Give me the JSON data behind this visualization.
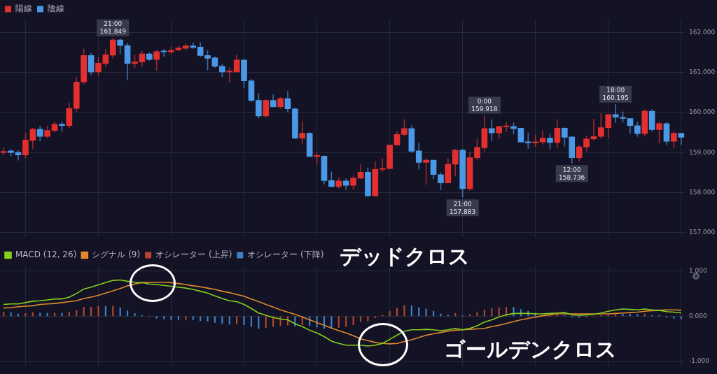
{
  "chart_data": [
    {
      "type": "candlestick",
      "categories": [
        null,
        null,
        null,
        null,
        null,
        null,
        null,
        null,
        null,
        null,
        null,
        null,
        null,
        null,
        null,
        null,
        null,
        null,
        null,
        null,
        null,
        null,
        null,
        null,
        null,
        null,
        null,
        null,
        null,
        null,
        null,
        null,
        null,
        null,
        null,
        null,
        null,
        null,
        null,
        null,
        null,
        null,
        null,
        null,
        null,
        null,
        null,
        null,
        null,
        null,
        null,
        null,
        null,
        null,
        null,
        null,
        null,
        null,
        null,
        null,
        null,
        null,
        null,
        null,
        null,
        null,
        null,
        null,
        null,
        null,
        null,
        null,
        null,
        null,
        null,
        null,
        null,
        null,
        null,
        null,
        null,
        null,
        null,
        null,
        null,
        null,
        null,
        null,
        null,
        null,
        null,
        null,
        null,
        null
      ],
      "series": [
        {
          "name": "陽線",
          "color": "#e3302f",
          "ohlc": [
            [
              159.0,
              159.12,
              158.94,
              159.02
            ],
            null,
            null,
            [
              158.94,
              159.49,
              158.87,
              159.31
            ],
            [
              159.3,
              159.61,
              159.1,
              159.58
            ],
            null,
            [
              159.4,
              159.67,
              159.36,
              159.55
            ],
            [
              159.55,
              159.76,
              159.51,
              159.71
            ],
            null,
            [
              159.67,
              160.23,
              159.62,
              160.1
            ],
            [
              160.1,
              160.88,
              160.02,
              160.76
            ],
            [
              160.76,
              161.59,
              160.71,
              161.42
            ],
            null,
            [
              161.01,
              161.38,
              160.93,
              161.23
            ],
            [
              161.22,
              161.57,
              161.14,
              161.44
            ],
            [
              161.43,
              161.849,
              161.36,
              161.81
            ],
            null,
            null,
            [
              161.22,
              161.43,
              161.12,
              161.26
            ],
            [
              161.26,
              161.53,
              161.16,
              161.46
            ],
            null,
            [
              161.32,
              161.55,
              161.05,
              161.52
            ],
            null,
            [
              161.51,
              161.64,
              161.46,
              161.55
            ],
            [
              161.56,
              161.66,
              161.54,
              161.61
            ],
            [
              161.6,
              161.71,
              161.56,
              161.66
            ],
            null,
            null,
            null,
            null,
            null,
            [
              161.01,
              161.12,
              160.75,
              161.02
            ],
            [
              161.01,
              161.44,
              161.0,
              161.31
            ],
            null,
            null,
            null,
            [
              159.91,
              160.32,
              159.88,
              160.3
            ],
            null,
            [
              160.14,
              160.37,
              160.11,
              160.35
            ],
            null,
            null,
            [
              159.36,
              159.77,
              159.21,
              159.48
            ],
            null,
            [
              158.9,
              158.99,
              158.7,
              158.91
            ],
            null,
            null,
            [
              158.15,
              158.38,
              158.11,
              158.29
            ],
            null,
            [
              158.18,
              158.42,
              158.07,
              158.36
            ],
            [
              158.36,
              158.7,
              158.35,
              158.51
            ],
            null,
            [
              157.92,
              158.77,
              157.91,
              158.58
            ],
            [
              158.58,
              158.85,
              158.52,
              158.6
            ],
            [
              158.6,
              159.19,
              158.6,
              159.19
            ],
            [
              159.19,
              159.53,
              159.18,
              159.45
            ],
            [
              159.45,
              159.82,
              159.41,
              159.6
            ],
            null,
            null,
            [
              158.75,
              158.85,
              158.2,
              158.81
            ],
            null,
            null,
            [
              158.24,
              158.85,
              158.24,
              158.71
            ],
            [
              158.71,
              159.08,
              158.41,
              159.06
            ],
            null,
            [
              158.1,
              159.01,
              158.05,
              158.87
            ],
            [
              158.87,
              159.33,
              158.81,
              159.13
            ],
            [
              159.12,
              159.918,
              159.03,
              159.6
            ],
            null,
            [
              159.49,
              159.65,
              159.35,
              159.65
            ],
            [
              159.64,
              159.76,
              159.52,
              159.65
            ],
            null,
            null,
            null,
            [
              159.24,
              159.45,
              159.15,
              159.26
            ],
            [
              159.26,
              159.55,
              159.21,
              159.36
            ],
            null,
            [
              159.25,
              159.82,
              159.12,
              159.61
            ],
            null,
            null,
            [
              158.87,
              159.18,
              158.78,
              159.14
            ],
            [
              159.14,
              159.42,
              159.03,
              159.34
            ],
            [
              159.34,
              159.83,
              159.3,
              159.4
            ],
            [
              159.4,
              159.98,
              159.35,
              159.62
            ],
            [
              159.62,
              159.95,
              159.36,
              159.95
            ],
            null,
            null,
            null,
            null,
            [
              159.47,
              160.07,
              159.42,
              160.03
            ],
            null,
            [
              159.57,
              159.77,
              159.24,
              159.72
            ],
            null,
            [
              159.28,
              159.53,
              159.11,
              159.48
            ],
            null
          ]
        },
        {
          "name": "陰線",
          "color": "#4a98e6",
          "ohlc": [
            null,
            [
              159.04,
              159.07,
              158.91,
              159.0
            ],
            [
              159.0,
              159.05,
              158.81,
              158.94
            ],
            null,
            null,
            [
              159.58,
              159.66,
              159.29,
              159.4
            ],
            null,
            null,
            [
              159.71,
              159.77,
              159.53,
              159.67
            ],
            null,
            null,
            null,
            [
              161.42,
              161.48,
              160.94,
              161.01
            ],
            null,
            null,
            null,
            [
              161.81,
              161.84,
              161.46,
              161.67
            ],
            [
              161.67,
              161.73,
              160.81,
              161.22
            ],
            null,
            null,
            [
              161.46,
              161.49,
              161.3,
              161.32
            ],
            null,
            [
              161.52,
              161.57,
              161.4,
              161.51
            ],
            null,
            null,
            null,
            [
              161.66,
              161.74,
              161.59,
              161.62
            ],
            [
              161.63,
              161.74,
              161.39,
              161.42
            ],
            [
              161.42,
              161.55,
              161.06,
              161.35
            ],
            [
              161.36,
              161.39,
              161.12,
              161.15
            ],
            [
              161.15,
              161.2,
              160.89,
              161.01
            ],
            null,
            null,
            [
              161.31,
              161.31,
              160.62,
              160.79
            ],
            [
              160.79,
              160.83,
              160.27,
              160.3
            ],
            [
              160.3,
              160.48,
              159.86,
              159.91
            ],
            null,
            [
              160.3,
              160.44,
              160.14,
              160.14
            ],
            null,
            [
              160.35,
              160.53,
              160.02,
              160.09
            ],
            [
              160.09,
              160.12,
              159.34,
              159.36
            ],
            null,
            [
              159.48,
              159.5,
              158.9,
              158.9
            ],
            null,
            [
              158.91,
              158.92,
              158.21,
              158.3
            ],
            [
              158.3,
              158.52,
              158.14,
              158.15
            ],
            null,
            [
              158.29,
              158.35,
              158.07,
              158.18
            ],
            null,
            null,
            [
              158.51,
              158.62,
              157.91,
              157.92
            ],
            null,
            null,
            null,
            null,
            null,
            [
              159.6,
              159.67,
              159.0,
              159.03
            ],
            [
              159.04,
              159.23,
              158.58,
              158.75
            ],
            null,
            [
              158.81,
              158.81,
              158.34,
              158.45
            ],
            [
              158.45,
              158.5,
              158.07,
              158.24
            ],
            null,
            null,
            [
              159.06,
              159.08,
              157.883,
              158.1
            ],
            null,
            null,
            null,
            [
              159.6,
              159.82,
              159.29,
              159.49
            ],
            null,
            null,
            [
              159.65,
              159.74,
              159.46,
              159.6
            ],
            [
              159.61,
              159.61,
              159.26,
              159.26
            ],
            [
              159.27,
              159.49,
              159.1,
              159.24
            ],
            null,
            null,
            [
              159.36,
              159.46,
              159.09,
              159.25
            ],
            null,
            [
              159.61,
              159.62,
              159.16,
              159.38
            ],
            [
              159.39,
              159.39,
              158.736,
              158.87
            ],
            null,
            null,
            null,
            null,
            null,
            [
              159.95,
              160.195,
              159.74,
              159.88
            ],
            [
              159.88,
              160.02,
              159.76,
              159.85
            ],
            [
              159.85,
              159.85,
              159.48,
              159.67
            ],
            [
              159.67,
              159.76,
              159.4,
              159.47
            ],
            null,
            [
              160.03,
              160.07,
              159.53,
              159.57
            ],
            null,
            [
              159.72,
              159.75,
              159.2,
              159.28
            ],
            null,
            [
              159.48,
              159.48,
              159.2,
              159.38
            ]
          ]
        }
      ],
      "ylim": [
        156.9,
        162.3
      ],
      "yticks": [
        {
          "value": 157,
          "label": "157.000"
        },
        {
          "value": 158,
          "label": "158.000"
        },
        {
          "value": 159,
          "label": "159.000"
        },
        {
          "value": 160,
          "label": "160.000"
        },
        {
          "value": 161,
          "label": "161.000"
        },
        {
          "value": 162,
          "label": "162.000"
        }
      ],
      "grid": true,
      "legend": "top left",
      "tick_labels": "y",
      "annotations": [
        {
          "text": "21:00\n161.849",
          "y": 161.849
        },
        {
          "text": "21:00\n157.883",
          "y": 157.883
        },
        {
          "text": "0:00\n159.918",
          "y": 159.918
        },
        {
          "text": "12:00\n158.736",
          "y": 158.736
        },
        {
          "text": "18:00\n160.195",
          "y": 160.195
        }
      ]
    },
    {
      "type": "line",
      "categories": [
        null,
        null,
        null,
        null,
        null,
        null,
        null,
        null,
        null,
        null,
        null,
        null,
        null,
        null,
        null,
        null,
        null,
        null,
        null,
        null,
        null,
        null,
        null,
        null,
        null,
        null,
        null,
        null,
        null,
        null,
        null,
        null,
        null,
        null,
        null,
        null,
        null,
        null,
        null,
        null,
        null,
        null,
        null,
        null,
        null,
        null,
        null,
        null,
        null,
        null,
        null,
        null,
        null,
        null,
        null,
        null,
        null,
        null,
        null,
        null,
        null,
        null,
        null,
        null,
        null,
        null,
        null,
        null,
        null,
        null,
        null,
        null,
        null,
        null,
        null,
        null,
        null,
        null,
        null,
        null,
        null,
        null,
        null,
        null,
        null,
        null,
        null,
        null,
        null,
        null,
        null,
        null,
        null,
        null
      ],
      "series": [
        {
          "name": "MACD (12, 26)",
          "color": "#86cf1c",
          "values": [
            0.26,
            0.27,
            0.27,
            0.3,
            0.33,
            0.34,
            0.36,
            0.38,
            0.38,
            0.42,
            0.5,
            0.6,
            0.64,
            0.69,
            0.74,
            0.79,
            0.8,
            0.77,
            0.75,
            0.74,
            0.71,
            0.7,
            0.68,
            0.66,
            0.64,
            0.62,
            0.59,
            0.55,
            0.51,
            0.45,
            0.39,
            0.34,
            0.32,
            0.26,
            0.17,
            0.07,
            0.02,
            -0.03,
            -0.06,
            -0.08,
            -0.17,
            -0.23,
            -0.31,
            -0.37,
            -0.45,
            -0.55,
            -0.6,
            -0.64,
            -0.64,
            -0.64,
            -0.66,
            -0.64,
            -0.6,
            -0.51,
            -0.42,
            -0.33,
            -0.3,
            -0.3,
            -0.29,
            -0.3,
            -0.32,
            -0.3,
            -0.27,
            -0.3,
            -0.27,
            -0.21,
            -0.13,
            -0.08,
            -0.02,
            0.03,
            0.06,
            0.06,
            0.06,
            0.05,
            0.05,
            0.06,
            0.07,
            0.08,
            0.03,
            0.02,
            0.03,
            0.04,
            0.07,
            0.11,
            0.14,
            0.16,
            0.15,
            0.14,
            0.16,
            0.14,
            0.13,
            0.1,
            0.09,
            0.07
          ]
        },
        {
          "name": "シグナル (9)",
          "color": "#e08a2c",
          "values": [
            0.18,
            0.19,
            0.21,
            0.22,
            0.23,
            0.26,
            0.27,
            0.28,
            0.3,
            0.32,
            0.34,
            0.39,
            0.42,
            0.46,
            0.51,
            0.56,
            0.61,
            0.67,
            0.71,
            0.74,
            0.75,
            0.75,
            0.75,
            0.74,
            0.72,
            0.7,
            0.67,
            0.65,
            0.62,
            0.59,
            0.55,
            0.52,
            0.48,
            0.44,
            0.38,
            0.32,
            0.26,
            0.2,
            0.14,
            0.09,
            0.04,
            -0.02,
            -0.08,
            -0.14,
            -0.2,
            -0.26,
            -0.32,
            -0.37,
            -0.43,
            -0.5,
            -0.54,
            -0.58,
            -0.6,
            -0.61,
            -0.6,
            -0.56,
            -0.52,
            -0.47,
            -0.42,
            -0.39,
            -0.36,
            -0.33,
            -0.31,
            -0.3,
            -0.29,
            -0.28,
            -0.27,
            -0.23,
            -0.2,
            -0.16,
            -0.12,
            -0.08,
            -0.05,
            -0.02,
            0.01,
            0.03,
            0.05,
            0.05,
            0.05,
            0.05,
            0.05,
            0.05,
            0.05,
            0.05,
            0.06,
            0.07,
            0.08,
            0.09,
            0.11,
            0.12,
            0.13,
            0.14,
            0.14,
            0.13
          ]
        },
        {
          "name": "オシレーター (上昇)",
          "type": "bar",
          "color": "#b5452f",
          "values": [
            0.09,
            null,
            null,
            0.06,
            0.08,
            null,
            null,
            0.07,
            null,
            0.09,
            0.13,
            0.2,
            0.2,
            0.22,
            null,
            0.22,
            null,
            null,
            null,
            null,
            null,
            null,
            null,
            null,
            null,
            -0.08,
            null,
            null,
            null,
            null,
            null,
            null,
            -0.17,
            null,
            null,
            null,
            -0.25,
            -0.23,
            -0.21,
            -0.2,
            null,
            -0.19,
            null,
            null,
            null,
            null,
            -0.25,
            -0.23,
            -0.19,
            -0.12,
            -0.11,
            -0.04,
            0.03,
            0.11,
            0.18,
            0.24,
            null,
            null,
            null,
            null,
            null,
            null,
            0.06,
            null,
            0.04,
            0.08,
            0.14,
            0.17,
            0.19,
            0.2,
            null,
            null,
            null,
            null,
            null,
            0.03,
            0.03,
            null,
            null,
            null,
            -0.02,
            -0.01,
            0.02,
            0.03,
            0.05,
            null,
            null,
            null,
            0.05,
            null,
            null,
            null,
            null,
            null
          ]
        },
        {
          "name": "オシレーター (下降)",
          "type": "bar",
          "color": "#3a82cc",
          "values": [
            null,
            0.08,
            0.05,
            null,
            null,
            0.07,
            0.07,
            null,
            0.07,
            null,
            null,
            null,
            null,
            null,
            0.22,
            null,
            0.19,
            0.12,
            0.06,
            0.02,
            -0.01,
            -0.05,
            -0.06,
            -0.08,
            -0.08,
            null,
            -0.08,
            -0.1,
            -0.11,
            -0.14,
            -0.16,
            -0.18,
            null,
            -0.19,
            -0.23,
            -0.27,
            null,
            null,
            null,
            null,
            -0.22,
            null,
            -0.21,
            -0.24,
            -0.27,
            -0.27,
            null,
            null,
            null,
            null,
            null,
            null,
            null,
            null,
            null,
            null,
            0.23,
            0.19,
            0.16,
            0.11,
            0.05,
            0.03,
            null,
            0.01,
            null,
            null,
            null,
            null,
            null,
            null,
            0.2,
            0.15,
            0.11,
            0.07,
            null,
            null,
            null,
            0.02,
            -0.02,
            -0.03,
            null,
            null,
            null,
            null,
            null,
            0.05,
            0.05,
            0.04,
            null,
            0.02,
            0.02,
            -0.03,
            -0.05,
            -0.06
          ]
        }
      ],
      "ylim": [
        -1.1,
        1.1
      ],
      "yticks": [
        {
          "value": -1,
          "label": "-1.000"
        },
        {
          "value": 0,
          "label": "0.000"
        },
        {
          "value": 1,
          "label": "1.000"
        }
      ],
      "grid": true,
      "legend": "top left",
      "tick_labels": "y",
      "annotations": [
        "デッドクロス",
        "ゴールデンクロス"
      ]
    }
  ]
}
